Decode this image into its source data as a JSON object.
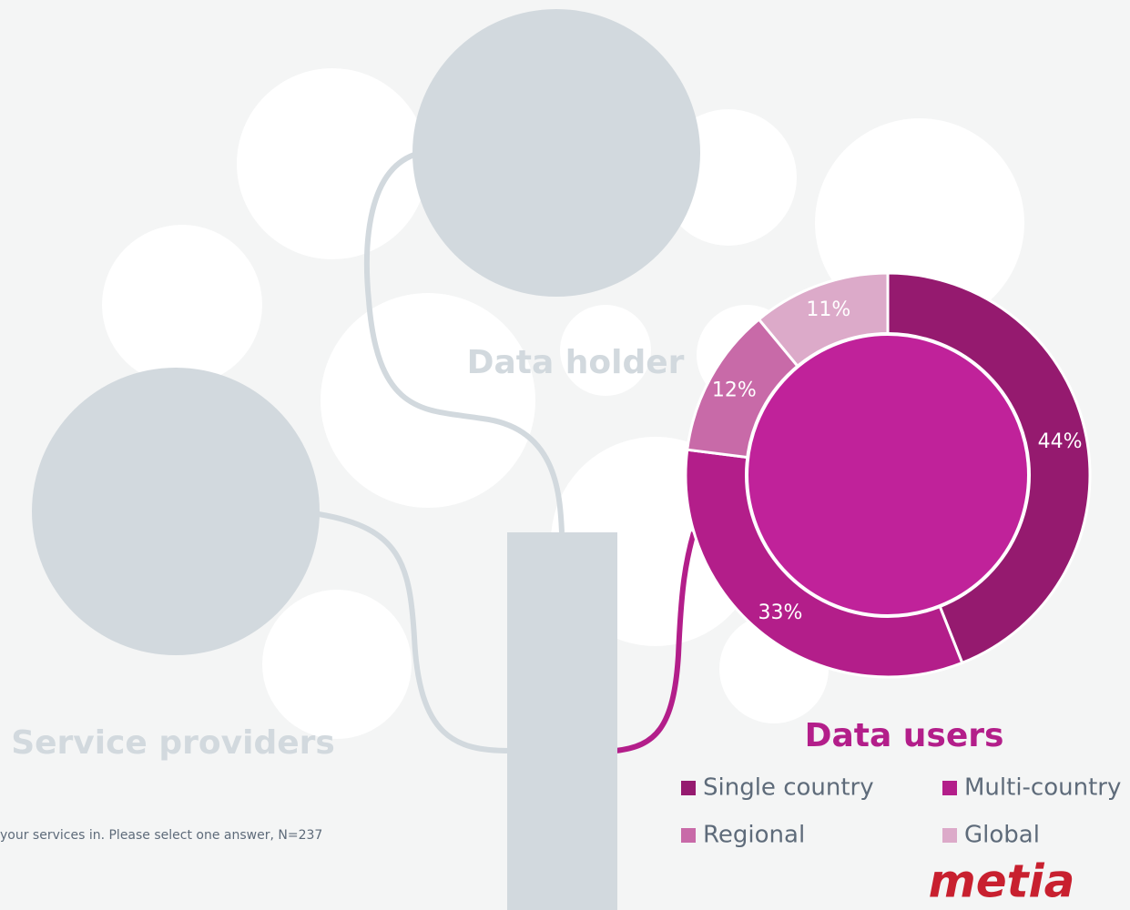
{
  "chart_data": {
    "type": "donut",
    "title": "Data users",
    "categories": [
      "Single country",
      "Multi-country",
      "Regional",
      "Global"
    ],
    "values": [
      44,
      33,
      12,
      11
    ],
    "value_labels": [
      "44%",
      "33%",
      "12%",
      "11%"
    ],
    "colors": [
      "#951a6f",
      "#b31e8a",
      "#c86aa8",
      "#dcaac9"
    ],
    "center_color": "#c0229a",
    "annotations": {
      "data_holder": "Data holder",
      "service_providers": "Service providers",
      "footnote": "your services in. Please select one answer, N=237",
      "logo": "metia"
    }
  }
}
